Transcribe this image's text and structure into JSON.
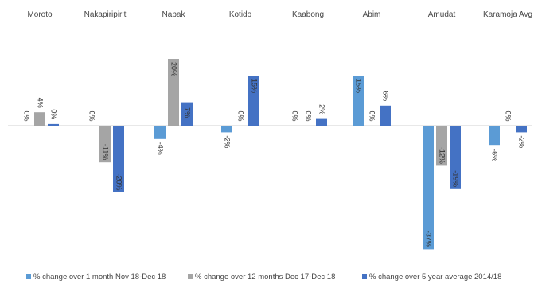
{
  "title_visible_fragment": "",
  "chart_data": {
    "type": "bar",
    "title": "",
    "xlabel": "",
    "ylabel": "",
    "ylim": [
      -40,
      25
    ],
    "grid": false,
    "legend_position": "bottom",
    "categories": [
      "Moroto",
      "Nakapiripirit",
      "Napak",
      "Kotido",
      "Kaabong",
      "Abim",
      "Amudat",
      "Karamoja Avg"
    ],
    "series": [
      {
        "name": "% change over 1 month Nov 18-Dec 18",
        "color": "#5b9bd5",
        "values": [
          0,
          0,
          -4,
          -2,
          0,
          15,
          -37,
          -6
        ],
        "labels": [
          "0%",
          "0%",
          "-4%",
          "-2%",
          "0%",
          "15%",
          "-37%",
          "-6%"
        ]
      },
      {
        "name": "% change over 12 months  Dec 17-Dec 18",
        "color": "#a5a5a5",
        "values": [
          4,
          -11,
          20,
          0,
          0,
          0,
          -12,
          0
        ],
        "labels": [
          "4%",
          "-11%",
          "20%",
          "0%",
          "0%",
          "0%",
          "-12%",
          "0%"
        ]
      },
      {
        "name": "% change over 5 year average 2014/18",
        "color": "#4472c4",
        "values": [
          0.5,
          -20,
          7,
          15,
          2,
          6,
          -19,
          -2
        ],
        "labels": [
          "0%",
          "-20%",
          "7%",
          "15%",
          "2%",
          "6%",
          "-19%",
          "-2%"
        ]
      }
    ]
  }
}
